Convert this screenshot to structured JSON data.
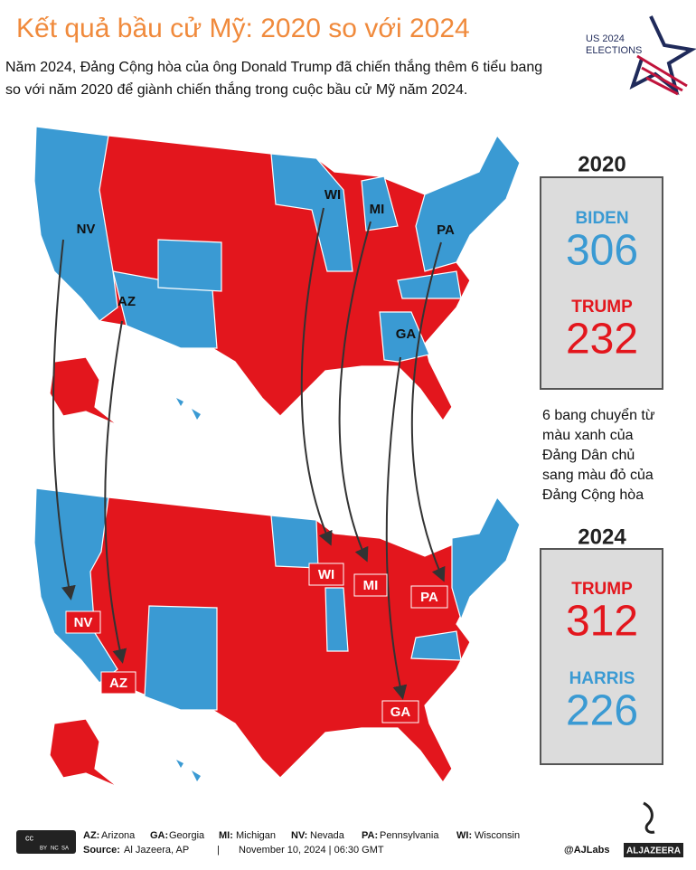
{
  "header": {
    "title": "Kết quả bầu cử Mỹ: 2020 so với 2024",
    "subtitle_lines": [
      "Năm 2024, Đảng Cộng hòa của ông Donald Trump đã chiến thắng thêm 6 tiểu bang",
      "so với năm 2020 để giành chiến thắng trong cuộc bầu cử Mỹ năm 2024."
    ],
    "badge": [
      "US 2024",
      "ELECTIONS"
    ]
  },
  "map_2020": {
    "state_labels": [
      "NV",
      "AZ",
      "WI",
      "MI",
      "PA",
      "GA"
    ]
  },
  "map_2024": {
    "state_labels": [
      "NV",
      "AZ",
      "WI",
      "MI",
      "PA",
      "GA"
    ]
  },
  "results_2020": {
    "year": "2020",
    "candidates": [
      {
        "name": "BIDEN",
        "votes": 306
      },
      {
        "name": "TRUMP",
        "votes": 232
      }
    ]
  },
  "note_lines": [
    "6 bang chuyển từ",
    "màu xanh của",
    "Đảng Dân chủ",
    "sang màu đỏ của",
    "Đảng Cộng hòa"
  ],
  "results_2024": {
    "year": "2024",
    "candidates": [
      {
        "name": "TRUMP",
        "votes": 312
      },
      {
        "name": "HARRIS",
        "votes": 226
      }
    ]
  },
  "footer": {
    "license": [
      "cc",
      "BY",
      "NC",
      "SA"
    ],
    "legend": [
      {
        "code": "AZ:",
        "name": "Arizona"
      },
      {
        "code": "GA:",
        "name": "Georgia"
      },
      {
        "code": "MI:",
        "name": "Michigan"
      },
      {
        "code": "NV:",
        "name": "Nevada"
      },
      {
        "code": "PA:",
        "name": "Pennsylvania"
      },
      {
        "code": "WI:",
        "name": "Wisconsin"
      }
    ],
    "source_label": "Source:",
    "source": "Al Jazeera, AP",
    "date": "November 10, 2024 | 06:30 GMT",
    "handle": "@AJLabs",
    "logo": "ALJAZEERA"
  }
}
